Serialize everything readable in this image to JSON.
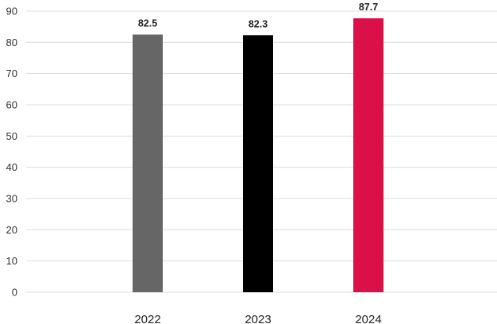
{
  "chart_data": {
    "type": "bar",
    "title": "",
    "xlabel": "",
    "ylabel": "",
    "categories": [
      "2022",
      "2023",
      "2024"
    ],
    "values": [
      82.5,
      82.3,
      87.7
    ],
    "value_labels": [
      "82.5",
      "82.3",
      "87.7"
    ],
    "bar_colors": [
      "#666666",
      "#000000",
      "#dc1049"
    ],
    "ylim": [
      0,
      90
    ],
    "yticks": [
      0,
      10,
      20,
      30,
      40,
      50,
      60,
      70,
      80,
      90
    ],
    "ytick_labels": [
      "0",
      "10",
      "20",
      "30",
      "40",
      "50",
      "60",
      "70",
      "80",
      "90"
    ],
    "grid": true,
    "legend": "none"
  }
}
